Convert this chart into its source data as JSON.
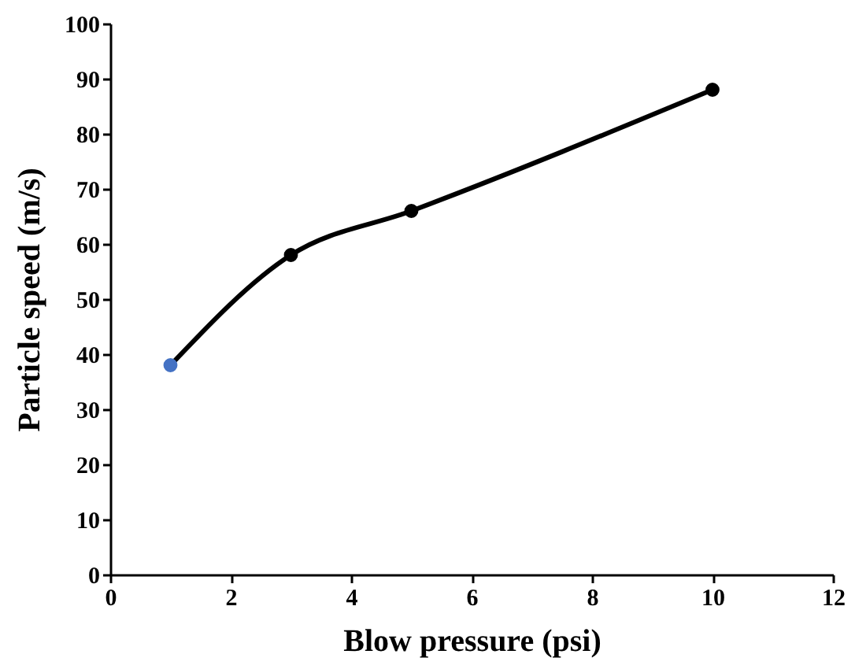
{
  "chart_data": {
    "type": "line",
    "xlabel": "Blow pressure (psi)",
    "ylabel": "Particle speed (m/s)",
    "x": [
      1,
      3,
      5,
      10
    ],
    "series": [
      {
        "color": "#000000",
        "colors": [
          "#4472c4",
          "#000000",
          "#000000",
          "#000000"
        ],
        "values": [
          38,
          58,
          66,
          88
        ]
      }
    ],
    "xlim": [
      0,
      12
    ],
    "xticks": [
      0,
      2,
      4,
      6,
      8,
      10,
      12
    ],
    "ylim": [
      0,
      100
    ],
    "yticks": [
      0,
      10,
      20,
      30,
      40,
      50,
      60,
      70,
      80,
      90,
      100
    ],
    "grid": false,
    "marker": "circle",
    "line_style": "solid"
  }
}
